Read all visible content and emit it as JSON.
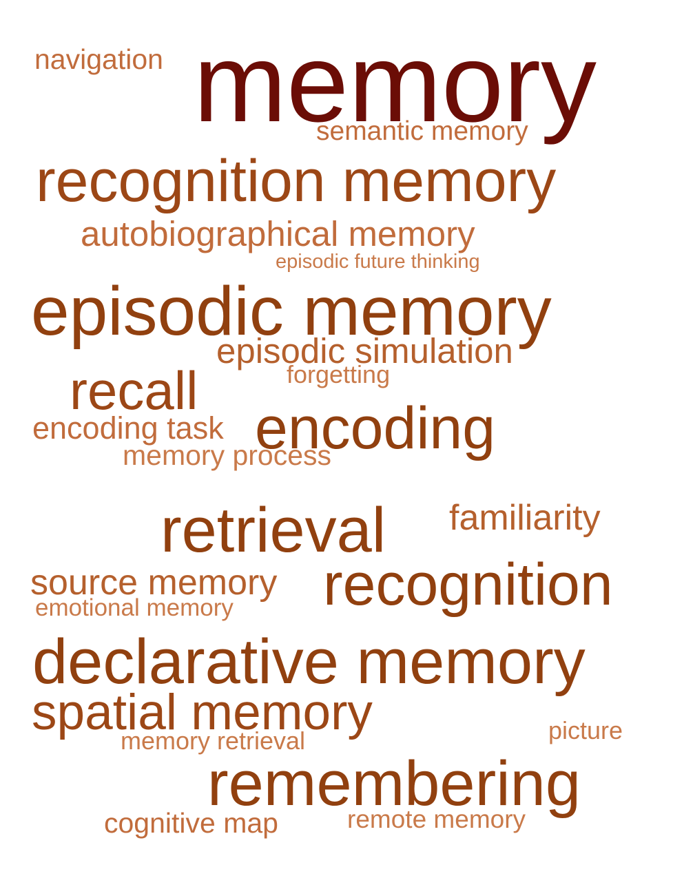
{
  "words": [
    {
      "text": "memory",
      "color": "#6b0d06"
    },
    {
      "text": "navigation",
      "color": "#c16c3c"
    },
    {
      "text": "semantic memory",
      "color": "#c16c3c"
    },
    {
      "text": "recognition memory",
      "color": "#9c4716"
    },
    {
      "text": "autobiographical memory",
      "color": "#c16c3c"
    },
    {
      "text": "episodic future thinking",
      "color": "#c97a4a"
    },
    {
      "text": "episodic memory",
      "color": "#91400f"
    },
    {
      "text": "episodic simulation",
      "color": "#b5602d"
    },
    {
      "text": "forgetting",
      "color": "#c97a4a"
    },
    {
      "text": "recall",
      "color": "#9c4716"
    },
    {
      "text": "encoding task",
      "color": "#c16c3c"
    },
    {
      "text": "encoding",
      "color": "#91400f"
    },
    {
      "text": "memory process",
      "color": "#c97a4a"
    },
    {
      "text": "retrieval",
      "color": "#91400f"
    },
    {
      "text": "familiarity",
      "color": "#b5602d"
    },
    {
      "text": "source memory",
      "color": "#b5602d"
    },
    {
      "text": "recognition",
      "color": "#91400f"
    },
    {
      "text": "emotional memory",
      "color": "#c97a4a"
    },
    {
      "text": "declarative memory",
      "color": "#91400f"
    },
    {
      "text": "spatial memory",
      "color": "#9c4716"
    },
    {
      "text": "picture",
      "color": "#c97a4a"
    },
    {
      "text": "memory retrieval",
      "color": "#c97a4a"
    },
    {
      "text": "remembering",
      "color": "#91400f"
    },
    {
      "text": "cognitive map",
      "color": "#c16c3c"
    },
    {
      "text": "remote memory",
      "color": "#c97a4a"
    }
  ]
}
